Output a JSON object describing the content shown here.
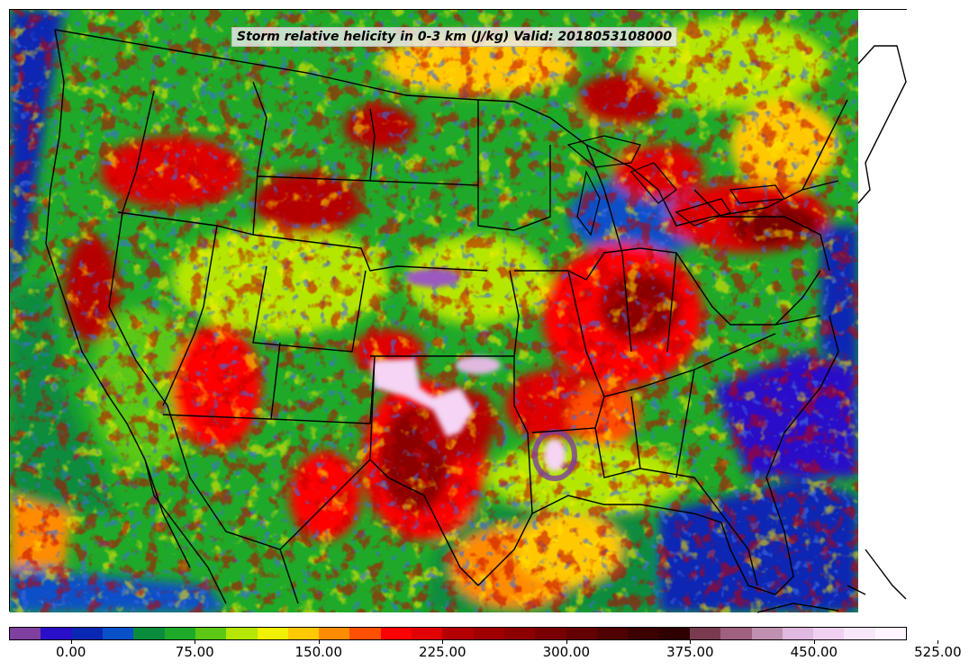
{
  "map": {
    "title": "Storm relative helicity in 0-3 km (J/kg) Valid: 2018053108000",
    "field": "storm-relative-helicity",
    "region": "continental-united-states"
  },
  "colorbar": {
    "colors": [
      "#7f3f9f",
      "#2a0fc8",
      "#0a28b4",
      "#0a50c8",
      "#0a8c3c",
      "#1eaa28",
      "#5ac814",
      "#b4e600",
      "#f0f000",
      "#ffc800",
      "#ff8c00",
      "#ff5000",
      "#ff0000",
      "#e10000",
      "#b40000",
      "#a00000",
      "#8c0000",
      "#780000",
      "#640000",
      "#500000",
      "#3c0000",
      "#300000",
      "#7a3a50",
      "#a06080",
      "#c090b0",
      "#e0b8e0",
      "#f0d0f0",
      "#fae6fa",
      "#fff4ff"
    ],
    "ticks": [
      {
        "label": "0.00",
        "value": 0
      },
      {
        "label": "75.00",
        "value": 75
      },
      {
        "label": "150.00",
        "value": 150
      },
      {
        "label": "225.00",
        "value": 225
      },
      {
        "label": "300.00",
        "value": 300
      },
      {
        "label": "375.00",
        "value": 375
      },
      {
        "label": "450.00",
        "value": 450
      },
      {
        "label": "525.00",
        "value": 525
      }
    ]
  }
}
